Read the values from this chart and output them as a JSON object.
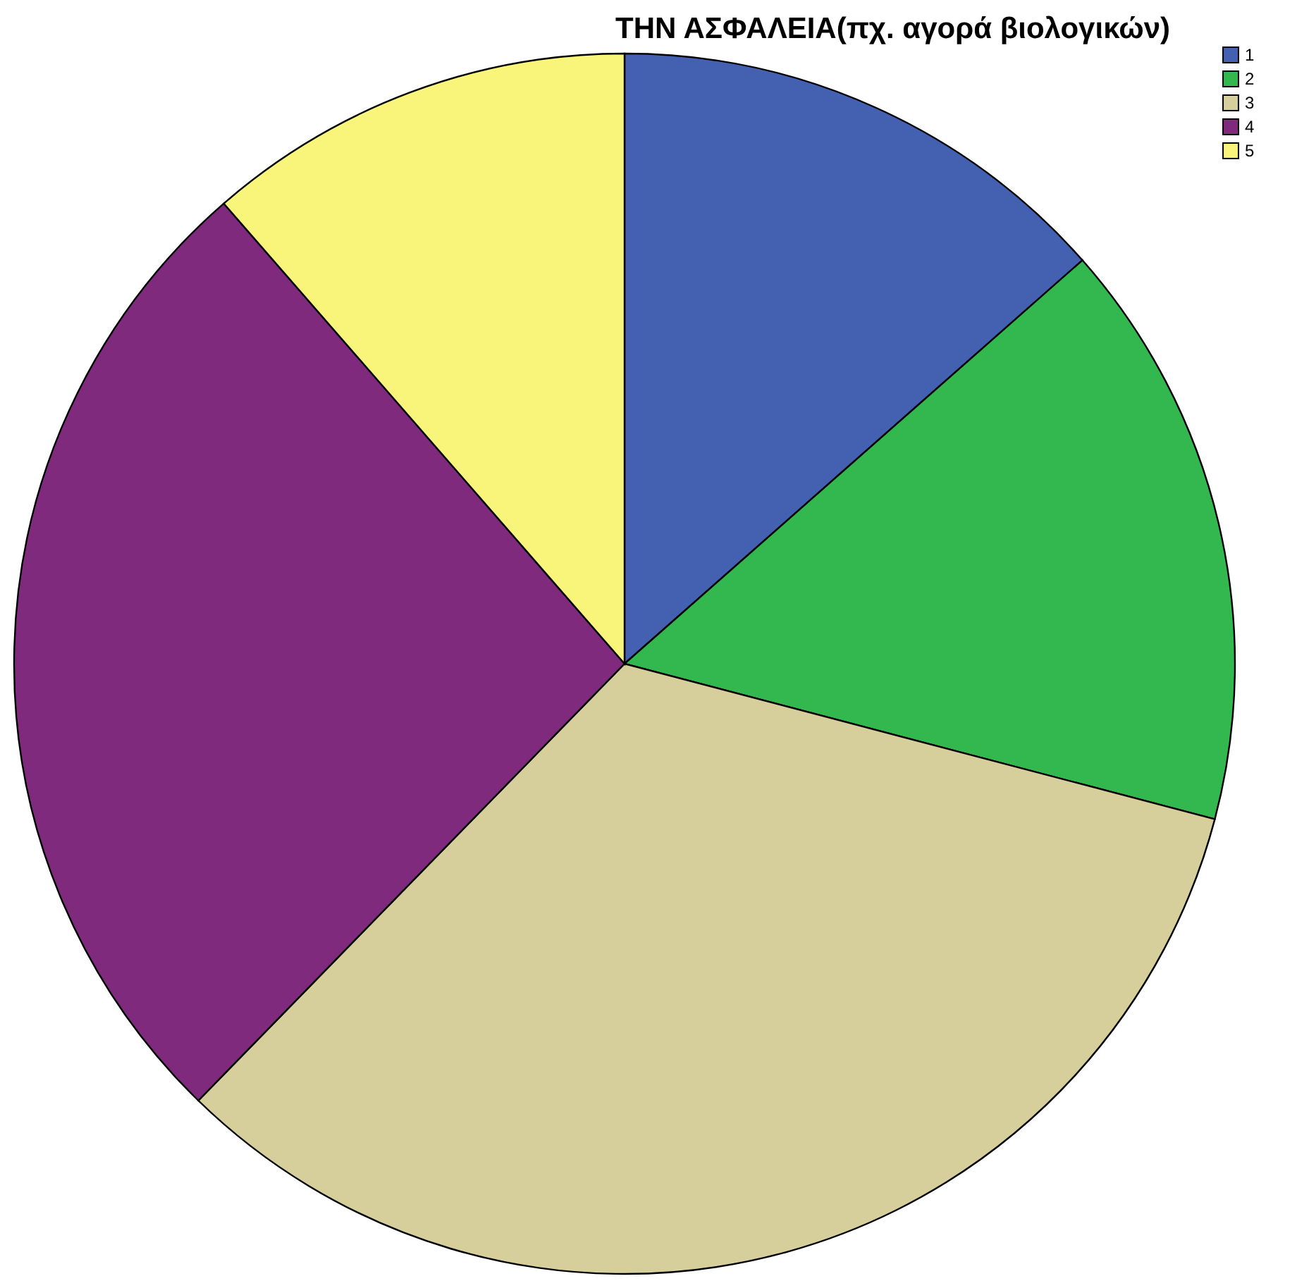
{
  "chart_data": {
    "type": "pie",
    "title": "ΤΗΝ ΑΣΦΑΛΕΙΑ(πχ. αγορά βιολογικών)",
    "categories": [
      "1",
      "2",
      "3",
      "4",
      "5"
    ],
    "values": [
      13.5,
      15.6,
      33.2,
      26.3,
      11.4
    ],
    "colors": [
      "#4361b0",
      "#33b84f",
      "#d6cf9b",
      "#7f2a7d",
      "#f9f57a"
    ],
    "legend": "top right"
  }
}
